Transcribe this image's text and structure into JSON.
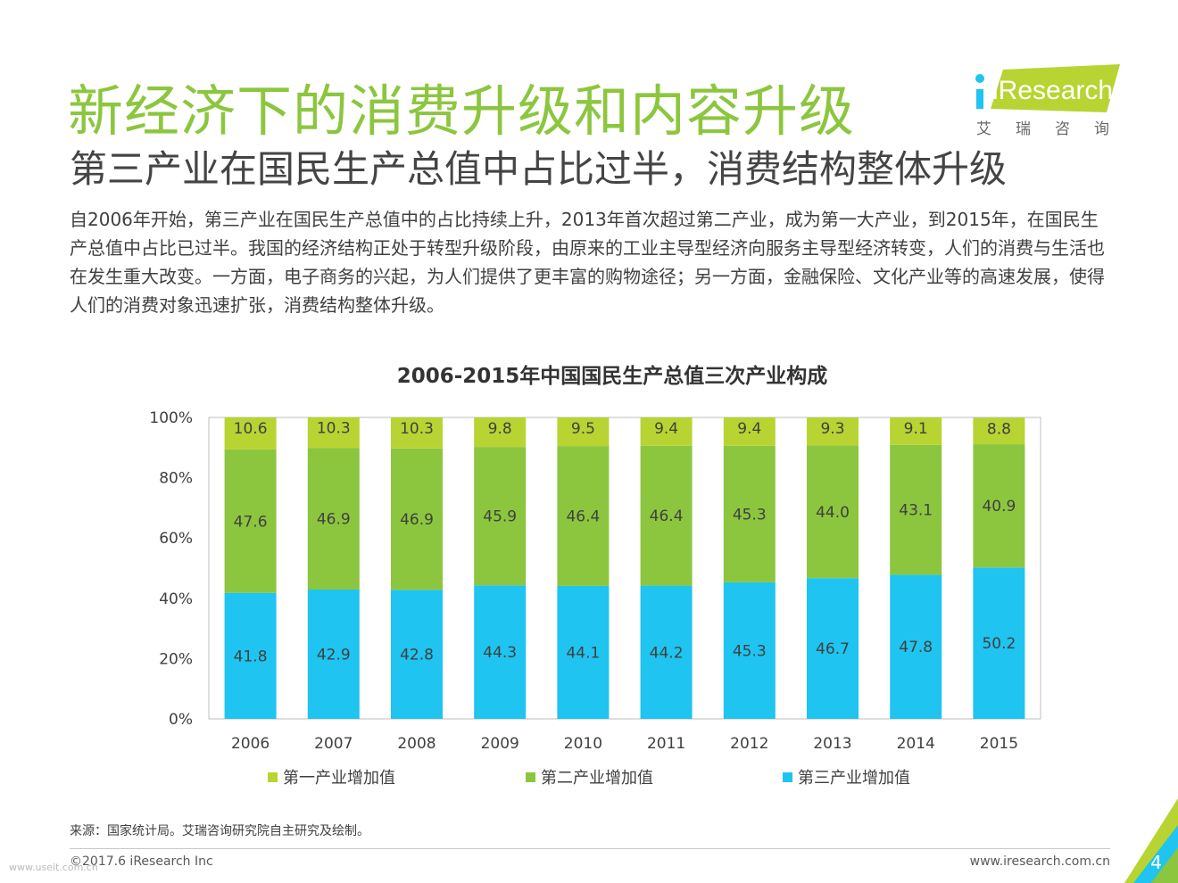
{
  "header": {
    "title": "新经济下的消费升级和内容升级",
    "subtitle": "第三产业在国民生产总值中占比过半，消费结构整体升级"
  },
  "logo": {
    "brand": "iResearch",
    "chinese": "艾瑞咨询"
  },
  "intro": "自2006年开始，第三产业在国民生产总值中的占比持续上升，2013年首次超过第二产业，成为第一大产业，到2015年，在国民生产总值中占比已过半。我国的经济结构正处于转型升级阶段，由原来的工业主导型经济向服务主导型经济转变，人们的消费与生活也在发生重大改变。一方面，电子商务的兴起，为人们提供了更丰富的购物途径；另一方面，金融保险、文化产业等的高速发展，使得人们的消费对象迅速扩张，消费结构整体升级。",
  "chart_data": {
    "type": "bar",
    "stacked": true,
    "title": "2006-2015年中国国民生产总值三次产业构成",
    "categories": [
      "2006",
      "2007",
      "2008",
      "2009",
      "2010",
      "2011",
      "2012",
      "2013",
      "2014",
      "2015"
    ],
    "series": [
      {
        "name": "第三产业增加值",
        "color": "#1fc4f0",
        "values": [
          41.8,
          42.9,
          42.8,
          44.3,
          44.1,
          44.2,
          45.3,
          46.7,
          47.8,
          50.2
        ]
      },
      {
        "name": "第二产业增加值",
        "color": "#8cc63e",
        "values": [
          47.6,
          46.9,
          46.9,
          45.9,
          46.4,
          46.4,
          45.3,
          44.0,
          43.1,
          40.9
        ]
      },
      {
        "name": "第一产业增加值",
        "color": "#b8d432",
        "values": [
          10.6,
          10.3,
          10.3,
          9.8,
          9.5,
          9.4,
          9.4,
          9.3,
          9.1,
          8.8
        ]
      }
    ],
    "ylim": [
      0,
      100
    ],
    "yticks": [
      "0%",
      "20%",
      "40%",
      "60%",
      "80%",
      "100%"
    ],
    "legend": [
      {
        "name": "第一产业增加值",
        "color": "#b8d432"
      },
      {
        "name": "第二产业增加值",
        "color": "#8cc63e"
      },
      {
        "name": "第三产业增加值",
        "color": "#1fc4f0"
      }
    ],
    "legend_position": "bottom"
  },
  "footer": {
    "source": "来源：国家统计局。艾瑞咨询研究院自主研究及绘制。",
    "copyright": "©2017.6 iResearch Inc",
    "website": "www.iresearch.com.cn",
    "page_number": "4",
    "watermark": "www.useit.com.cn"
  },
  "colors": {
    "accent_green": "#8cc63e",
    "primary_green": "#b8d432",
    "secondary_green": "#8cc63e",
    "tertiary_blue": "#1fc4f0"
  }
}
